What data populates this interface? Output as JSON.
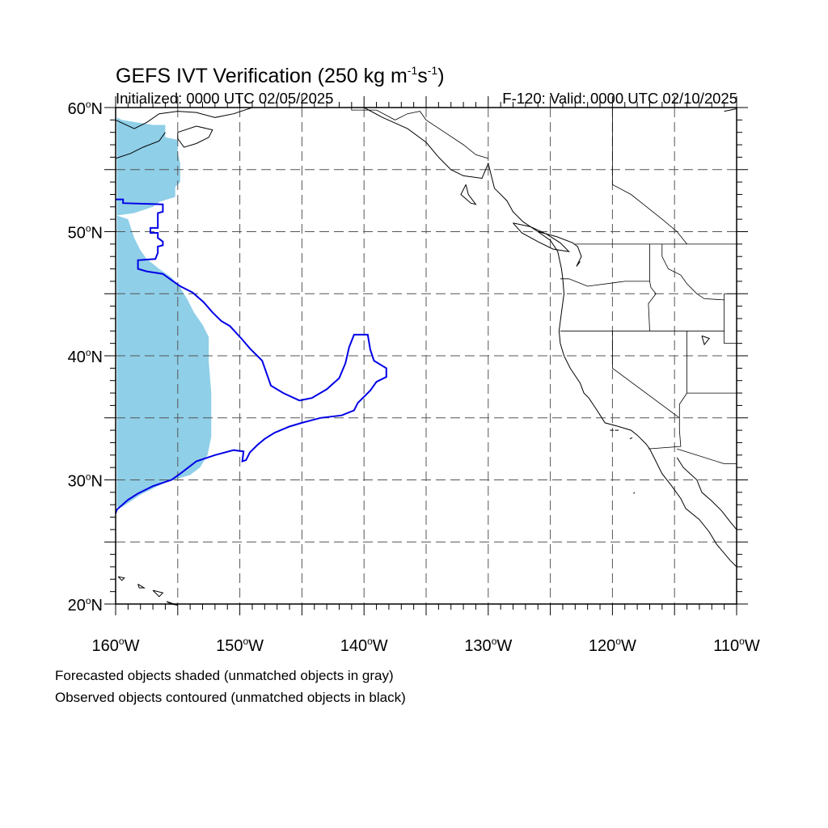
{
  "header": {
    "title_main": "GEFS IVT Verification (250 kg m",
    "title_exp1": "-1",
    "title_mid": "s",
    "title_exp2": "-1",
    "title_end": ")",
    "initialized": "Initialized: 0000 UTC 02/05/2025",
    "valid": "F-120: Valid: 0000 UTC 02/10/2025"
  },
  "map": {
    "extent": {
      "lon_min": -160,
      "lon_max": -110,
      "lat_min": 20,
      "lat_max": 60
    },
    "lat_labels": [
      {
        "value": 60,
        "text": "60",
        "hemi": "N"
      },
      {
        "value": 50,
        "text": "50",
        "hemi": "N"
      },
      {
        "value": 40,
        "text": "40",
        "hemi": "N"
      },
      {
        "value": 30,
        "text": "30",
        "hemi": "N"
      },
      {
        "value": 20,
        "text": "20",
        "hemi": "N"
      }
    ],
    "lon_labels": [
      {
        "value": -160,
        "text": "160",
        "hemi": "W"
      },
      {
        "value": -150,
        "text": "150",
        "hemi": "W"
      },
      {
        "value": -140,
        "text": "140",
        "hemi": "W"
      },
      {
        "value": -130,
        "text": "130",
        "hemi": "W"
      },
      {
        "value": -120,
        "text": "120",
        "hemi": "W"
      },
      {
        "value": -110,
        "text": "110",
        "hemi": "W"
      }
    ],
    "grid_step_deg": 5,
    "minor_tick_deg": 1,
    "colors": {
      "forecast_fill": "#8fcfe8",
      "observed_contour": "#0000e6",
      "grid": "#555555",
      "coast": "#000000"
    },
    "forecast_object": [
      [
        -159.9,
        59.2
      ],
      [
        -159.5,
        59.0
      ],
      [
        -157.0,
        58.6
      ],
      [
        -156.0,
        58.6
      ],
      [
        -156.0,
        57.6
      ],
      [
        -155.0,
        57.4
      ],
      [
        -155.0,
        56.4
      ],
      [
        -154.8,
        55.5
      ],
      [
        -154.8,
        54.0
      ],
      [
        -155.2,
        53.6
      ],
      [
        -155.2,
        52.8
      ],
      [
        -156.5,
        52.4
      ],
      [
        -157.0,
        52.0
      ],
      [
        -158.5,
        51.5
      ],
      [
        -159.9,
        51.3
      ],
      [
        -159.9,
        59.2
      ]
    ],
    "forecast_object_2": [
      [
        -159.9,
        51.3
      ],
      [
        -159.0,
        51.0
      ],
      [
        -158.5,
        49.5
      ],
      [
        -158.0,
        48.5
      ],
      [
        -157.5,
        47.8
      ],
      [
        -156.5,
        47.0
      ],
      [
        -155.5,
        46.3
      ],
      [
        -154.8,
        45.5
      ],
      [
        -154.2,
        44.5
      ],
      [
        -153.7,
        43.5
      ],
      [
        -153.0,
        42.5
      ],
      [
        -152.5,
        41.5
      ],
      [
        -152.5,
        39.5
      ],
      [
        -152.3,
        37.0
      ],
      [
        -152.3,
        33.5
      ],
      [
        -152.6,
        32.0
      ],
      [
        -153.2,
        31.0
      ],
      [
        -154.0,
        30.4
      ],
      [
        -156.0,
        29.8
      ],
      [
        -158.0,
        28.8
      ],
      [
        -159.5,
        27.8
      ],
      [
        -159.9,
        27.8
      ],
      [
        -159.9,
        51.3
      ]
    ],
    "observed_object": [
      [
        -160.0,
        52.6
      ],
      [
        -159.4,
        52.6
      ],
      [
        -159.4,
        52.3
      ],
      [
        -156.2,
        52.2
      ],
      [
        -156.2,
        51.6
      ],
      [
        -156.6,
        51.5
      ],
      [
        -156.6,
        50.3
      ],
      [
        -157.2,
        50.3
      ],
      [
        -157.2,
        49.9
      ],
      [
        -156.6,
        49.9
      ],
      [
        -156.6,
        49.5
      ],
      [
        -156.2,
        49.2
      ],
      [
        -156.2,
        48.9
      ],
      [
        -156.6,
        48.8
      ],
      [
        -156.6,
        48.3
      ],
      [
        -156.8,
        47.8
      ],
      [
        -158.2,
        47.7
      ],
      [
        -158.2,
        47.0
      ],
      [
        -157.5,
        46.8
      ],
      [
        -156.2,
        46.6
      ],
      [
        -155.5,
        46.1
      ],
      [
        -154.8,
        45.6
      ],
      [
        -153.8,
        45.1
      ],
      [
        -152.9,
        44.3
      ],
      [
        -152.2,
        43.5
      ],
      [
        -151.5,
        42.8
      ],
      [
        -150.8,
        42.4
      ],
      [
        -149.8,
        41.3
      ],
      [
        -149.2,
        40.6
      ],
      [
        -148.2,
        39.6
      ],
      [
        -147.5,
        37.6
      ],
      [
        -146.5,
        37.0
      ],
      [
        -145.2,
        36.4
      ],
      [
        -144.2,
        36.6
      ],
      [
        -143.0,
        37.3
      ],
      [
        -142.0,
        38.2
      ],
      [
        -141.5,
        39.4
      ],
      [
        -141.2,
        40.7
      ],
      [
        -140.8,
        41.7
      ],
      [
        -139.7,
        41.7
      ],
      [
        -139.5,
        40.5
      ],
      [
        -139.2,
        39.6
      ],
      [
        -138.2,
        39.0
      ],
      [
        -138.2,
        38.3
      ],
      [
        -139.0,
        37.9
      ],
      [
        -139.5,
        37.2
      ],
      [
        -140.5,
        36.2
      ],
      [
        -140.8,
        35.6
      ],
      [
        -141.8,
        35.2
      ],
      [
        -143.5,
        35.0
      ],
      [
        -145.0,
        34.6
      ],
      [
        -146.0,
        34.3
      ],
      [
        -147.2,
        33.8
      ],
      [
        -148.0,
        33.3
      ],
      [
        -148.6,
        32.8
      ],
      [
        -149.2,
        32.2
      ],
      [
        -149.5,
        31.6
      ],
      [
        -149.8,
        31.5
      ],
      [
        -149.7,
        32.3
      ],
      [
        -150.5,
        32.4
      ],
      [
        -152.0,
        32.0
      ],
      [
        -153.5,
        31.5
      ],
      [
        -154.8,
        30.5
      ],
      [
        -155.5,
        30.0
      ],
      [
        -157.0,
        29.5
      ],
      [
        -158.2,
        28.9
      ],
      [
        -159.0,
        28.4
      ],
      [
        -159.9,
        27.6
      ],
      [
        -160.0,
        27.3
      ]
    ],
    "coastlines": [
      [
        [
          -160,
          59.0
        ],
        [
          -158.5,
          58.3
        ],
        [
          -157.5,
          58.8
        ],
        [
          -156.5,
          59.5
        ],
        [
          -155.0,
          59.7
        ],
        [
          -153.5,
          59.6
        ],
        [
          -152.0,
          59.2
        ],
        [
          -150.5,
          59.5
        ],
        [
          -149.0,
          60.0
        ]
      ],
      [
        [
          -155.0,
          58.0
        ],
        [
          -153.5,
          58.5
        ],
        [
          -152.2,
          58.2
        ],
        [
          -152.5,
          57.6
        ],
        [
          -153.5,
          57.1
        ],
        [
          -154.5,
          56.8
        ],
        [
          -155.0,
          57.5
        ],
        [
          -155.0,
          58.0
        ]
      ],
      [
        [
          -160,
          55.9
        ],
        [
          -158.8,
          56.3
        ],
        [
          -157.8,
          56.8
        ],
        [
          -156.5,
          57.3
        ],
        [
          -156.0,
          58.0
        ]
      ],
      [
        [
          -140.0,
          60.0
        ],
        [
          -138.5,
          59.2
        ],
        [
          -136.5,
          58.3
        ],
        [
          -135.0,
          57.2
        ],
        [
          -134.0,
          56.0
        ],
        [
          -133.0,
          55.0
        ],
        [
          -132.0,
          54.5
        ],
        [
          -130.5,
          54.3
        ],
        [
          -130.0,
          55.5
        ],
        [
          -129.5,
          53.5
        ],
        [
          -128.5,
          52.5
        ],
        [
          -128.0,
          51.6
        ],
        [
          -127.2,
          50.8
        ],
        [
          -126.0,
          50.0
        ],
        [
          -125.0,
          49.3
        ],
        [
          -124.4,
          48.4
        ],
        [
          -124.1,
          47.0
        ],
        [
          -124.0,
          46.2
        ],
        [
          -123.9,
          45.0
        ],
        [
          -124.1,
          43.5
        ],
        [
          -124.3,
          42.0
        ],
        [
          -124.2,
          41.0
        ],
        [
          -123.9,
          40.0
        ],
        [
          -123.4,
          39.0
        ],
        [
          -122.6,
          37.8
        ],
        [
          -122.3,
          37.0
        ],
        [
          -121.9,
          36.6
        ],
        [
          -121.3,
          35.7
        ],
        [
          -120.6,
          34.6
        ],
        [
          -119.5,
          34.3
        ],
        [
          -118.5,
          34.0
        ],
        [
          -118.0,
          33.6
        ],
        [
          -117.3,
          32.9
        ],
        [
          -117.0,
          32.5
        ],
        [
          -116.6,
          31.7
        ],
        [
          -116.0,
          30.5
        ],
        [
          -115.3,
          29.6
        ],
        [
          -114.5,
          28.5
        ],
        [
          -114.1,
          27.7
        ],
        [
          -113.0,
          26.8
        ],
        [
          -112.2,
          25.8
        ],
        [
          -111.6,
          24.8
        ],
        [
          -110.5,
          23.5
        ],
        [
          -110.0,
          23.0
        ]
      ],
      [
        [
          -114.8,
          31.8
        ],
        [
          -114.3,
          31.0
        ],
        [
          -113.2,
          30.0
        ],
        [
          -112.8,
          29.0
        ],
        [
          -112.0,
          28.3
        ],
        [
          -111.2,
          27.5
        ],
        [
          -110.5,
          26.6
        ],
        [
          -110.0,
          26.0
        ]
      ],
      [
        [
          -131.8,
          53.8
        ],
        [
          -132.2,
          53.0
        ],
        [
          -131.4,
          52.3
        ],
        [
          -131.0,
          52.2
        ],
        [
          -131.6,
          53.0
        ],
        [
          -131.8,
          53.8
        ]
      ],
      [
        [
          -128.0,
          50.7
        ],
        [
          -126.6,
          50.4
        ],
        [
          -125.3,
          49.8
        ],
        [
          -124.2,
          49.1
        ],
        [
          -123.5,
          48.4
        ],
        [
          -124.8,
          48.6
        ],
        [
          -126.0,
          49.2
        ],
        [
          -127.3,
          49.9
        ],
        [
          -128.0,
          50.7
        ]
      ],
      [
        [
          -126.0,
          50.0
        ],
        [
          -124.5,
          49.6
        ],
        [
          -123.2,
          49.1
        ],
        [
          -122.8,
          48.8
        ],
        [
          -122.5,
          48.0
        ],
        [
          -122.9,
          47.2
        ],
        [
          -122.6,
          47.6
        ]
      ],
      [
        [
          -159.8,
          22.2
        ],
        [
          -159.3,
          22.1
        ],
        [
          -159.5,
          21.9
        ],
        [
          -159.8,
          22.2
        ]
      ],
      [
        [
          -158.2,
          21.6
        ],
        [
          -157.7,
          21.3
        ],
        [
          -158.1,
          21.3
        ],
        [
          -158.2,
          21.6
        ]
      ],
      [
        [
          -157.0,
          21.1
        ],
        [
          -156.2,
          20.9
        ],
        [
          -156.5,
          20.6
        ],
        [
          -157.0,
          21.1
        ]
      ],
      [
        [
          -155.9,
          20.2
        ],
        [
          -155.0,
          19.9
        ],
        [
          -155.5,
          20.0
        ],
        [
          -155.9,
          20.2
        ]
      ],
      [
        [
          -112.8,
          41.6
        ],
        [
          -112.2,
          41.4
        ],
        [
          -112.6,
          40.9
        ],
        [
          -112.8,
          41.6
        ]
      ],
      [
        [
          -119.5,
          34.0
        ],
        [
          -119.8,
          34.0
        ]
      ],
      [
        [
          -118.6,
          33.3
        ],
        [
          -118.4,
          33.4
        ]
      ],
      [
        [
          -120.2,
          34.0
        ],
        [
          -119.9,
          34.0
        ]
      ],
      [
        [
          -118.2,
          29.0
        ],
        [
          -118.3,
          28.9
        ]
      ],
      [
        [
          -111.0,
          59.7
        ],
        [
          -110.0,
          59.9
        ]
      ]
    ],
    "borders": [
      [
        [
          -141.0,
          60.0
        ],
        [
          -141.0,
          59.8
        ],
        [
          -139.0,
          59.8
        ],
        [
          -137.5,
          59.0
        ],
        [
          -136.5,
          59.5
        ],
        [
          -135.5,
          59.7
        ],
        [
          -135.0,
          59.0
        ],
        [
          -133.5,
          58.0
        ],
        [
          -132.0,
          57.0
        ],
        [
          -131.0,
          56.2
        ],
        [
          -130.0,
          55.9
        ]
      ],
      [
        [
          -123.0,
          49.0
        ],
        [
          -110.0,
          49.0
        ]
      ],
      [
        [
          -117.0,
          49.0
        ],
        [
          -117.0,
          46.0
        ],
        [
          -116.9,
          45.5
        ],
        [
          -116.5,
          45.0
        ],
        [
          -117.1,
          44.2
        ],
        [
          -117.0,
          42.0
        ]
      ],
      [
        [
          -124.2,
          46.2
        ],
        [
          -123.5,
          46.2
        ],
        [
          -122.0,
          45.6
        ],
        [
          -119.0,
          46.0
        ],
        [
          -117.0,
          46.0
        ]
      ],
      [
        [
          -124.2,
          42.0
        ],
        [
          -117.0,
          42.0
        ],
        [
          -111.0,
          42.0
        ]
      ],
      [
        [
          -120.0,
          42.0
        ],
        [
          -120.0,
          39.0
        ],
        [
          -114.6,
          35.0
        ],
        [
          -114.6,
          34.0
        ],
        [
          -114.5,
          32.7
        ],
        [
          -117.1,
          32.5
        ]
      ],
      [
        [
          -114.0,
          42.0
        ],
        [
          -114.0,
          37.0
        ],
        [
          -114.6,
          36.1
        ],
        [
          -114.6,
          35.0
        ]
      ],
      [
        [
          -114.0,
          37.0
        ],
        [
          -110.0,
          37.0
        ]
      ],
      [
        [
          -111.0,
          45.0
        ],
        [
          -110.0,
          45.0
        ]
      ],
      [
        [
          -111.0,
          45.0
        ],
        [
          -111.0,
          41.0
        ],
        [
          -110.0,
          41.0
        ]
      ],
      [
        [
          -114.8,
          32.5
        ],
        [
          -111.0,
          31.3
        ],
        [
          -110.0,
          31.3
        ]
      ],
      [
        [
          -116.0,
          49.0
        ],
        [
          -116.0,
          48.0
        ],
        [
          -115.5,
          47.0
        ],
        [
          -114.5,
          46.5
        ],
        [
          -114.0,
          45.8
        ],
        [
          -113.2,
          45.0
        ],
        [
          -112.6,
          44.6
        ],
        [
          -111.0,
          44.5
        ]
      ],
      [
        [
          -120.0,
          60.0
        ],
        [
          -120.0,
          53.8
        ],
        [
          -118.5,
          53.0
        ],
        [
          -117.5,
          52.2
        ],
        [
          -116.0,
          51.0
        ],
        [
          -114.8,
          50.0
        ],
        [
          -114.0,
          49.0
        ]
      ]
    ]
  },
  "captions": {
    "forecast": "Forecasted objects shaded (unmatched objects in gray)",
    "observed": "Observed objects contoured (unmatched objects in black)"
  }
}
